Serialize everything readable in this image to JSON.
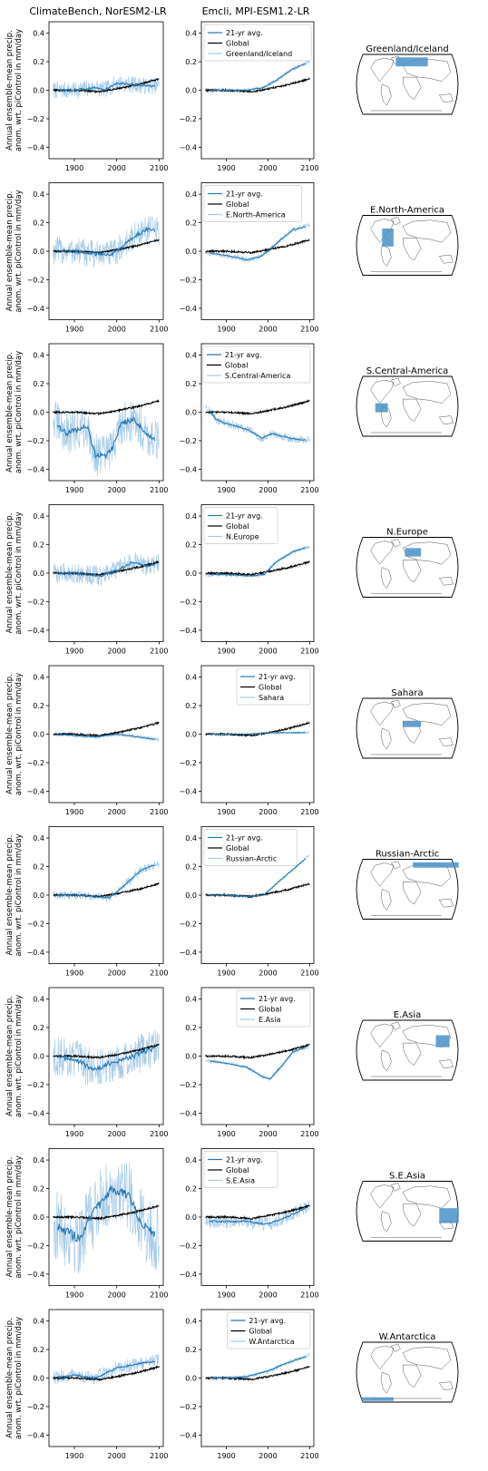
{
  "figure": {
    "col_titles": [
      "ClimateBench, NorESM2-LR",
      "Emcli, MPI-ESM1.2-LR"
    ],
    "ylabel_lines": [
      "Annual ensemble-mean precip.",
      "anom. wrt. piControl in mm/day"
    ],
    "legend_labels": [
      "21-yr avg.",
      "Global"
    ],
    "xticks": [
      1900,
      2000,
      2100
    ],
    "yticks": [
      -0.4,
      -0.2,
      0.0,
      0.2,
      0.4
    ],
    "ytick_labels": [
      "−0.4",
      "−0.2",
      "0.0",
      "0.2",
      "0.4"
    ],
    "xlim": [
      1840,
      2110
    ],
    "ylim": [
      -0.48,
      0.48
    ],
    "colors": {
      "avg": "#1f77b4",
      "raw": "#a6cbe8",
      "global": "#000000",
      "region": "#4a90c8"
    }
  },
  "chart_data": {
    "type": "line",
    "x_range": [
      1850,
      2100
    ],
    "regions": [
      {
        "name": "Greenland/Iceland",
        "legend_loc": "upper-left",
        "climatebench": {
          "avg": [
            [
              1850,
              0.0
            ],
            [
              1900,
              0.0
            ],
            [
              1950,
              0.02
            ],
            [
              1970,
              0.0
            ],
            [
              2000,
              0.05
            ],
            [
              2040,
              0.04
            ],
            [
              2070,
              0.03
            ],
            [
              2100,
              0.03
            ]
          ],
          "noise": 0.06
        },
        "emcli": {
          "avg": [
            [
              1850,
              0.0
            ],
            [
              1950,
              0.0
            ],
            [
              1990,
              0.02
            ],
            [
              2020,
              0.07
            ],
            [
              2060,
              0.15
            ],
            [
              2100,
              0.2
            ]
          ],
          "noise": 0.015
        },
        "global": [
          [
            1850,
            0.0
          ],
          [
            1900,
            0.0
          ],
          [
            1960,
            -0.01
          ],
          [
            2000,
            0.01
          ],
          [
            2050,
            0.04
          ],
          [
            2100,
            0.08
          ]
        ],
        "map_box": [
          0.4,
          0.05,
          0.68,
          0.2
        ]
      },
      {
        "name": "E.North-America",
        "legend_loc": "upper-left",
        "climatebench": {
          "avg": [
            [
              1850,
              0.0
            ],
            [
              1900,
              0.0
            ],
            [
              1950,
              -0.02
            ],
            [
              1990,
              -0.02
            ],
            [
              2020,
              0.05
            ],
            [
              2050,
              0.12
            ],
            [
              2075,
              0.16
            ],
            [
              2100,
              0.14
            ]
          ],
          "noise": 0.1
        },
        "emcli": {
          "avg": [
            [
              1850,
              -0.01
            ],
            [
              1900,
              -0.03
            ],
            [
              1950,
              -0.06
            ],
            [
              1980,
              -0.04
            ],
            [
              2000,
              0.0
            ],
            [
              2030,
              0.08
            ],
            [
              2060,
              0.15
            ],
            [
              2100,
              0.18
            ]
          ],
          "noise": 0.02
        },
        "global": [
          [
            1850,
            0.0
          ],
          [
            1900,
            0.0
          ],
          [
            1960,
            -0.01
          ],
          [
            2000,
            0.01
          ],
          [
            2050,
            0.04
          ],
          [
            2100,
            0.08
          ]
        ],
        "map_box": [
          0.28,
          0.22,
          0.38,
          0.52
        ]
      },
      {
        "name": "S.Central-America",
        "legend_loc": "upper-right",
        "climatebench": {
          "avg": [
            [
              1850,
              -0.05
            ],
            [
              1880,
              -0.15
            ],
            [
              1910,
              -0.12
            ],
            [
              1930,
              -0.1
            ],
            [
              1950,
              -0.3
            ],
            [
              1975,
              -0.3
            ],
            [
              1990,
              -0.25
            ],
            [
              2010,
              -0.08
            ],
            [
              2040,
              -0.05
            ],
            [
              2070,
              -0.15
            ],
            [
              2100,
              -0.22
            ]
          ],
          "noise": 0.15
        },
        "emcli": {
          "avg": [
            [
              1850,
              0.05
            ],
            [
              1875,
              -0.05
            ],
            [
              1900,
              -0.08
            ],
            [
              1950,
              -0.12
            ],
            [
              1985,
              -0.18
            ],
            [
              2010,
              -0.15
            ],
            [
              2050,
              -0.18
            ],
            [
              2100,
              -0.2
            ]
          ],
          "noise": 0.03
        },
        "global": [
          [
            1850,
            0.0
          ],
          [
            1900,
            0.0
          ],
          [
            1960,
            -0.01
          ],
          [
            2000,
            0.01
          ],
          [
            2050,
            0.04
          ],
          [
            2100,
            0.08
          ]
        ],
        "map_box": [
          0.22,
          0.45,
          0.33,
          0.6
        ]
      },
      {
        "name": "N.Europe",
        "legend_loc": "upper-left",
        "climatebench": {
          "avg": [
            [
              1850,
              0.0
            ],
            [
              1900,
              0.0
            ],
            [
              1960,
              -0.02
            ],
            [
              2000,
              0.02
            ],
            [
              2040,
              0.08
            ],
            [
              2070,
              0.05
            ],
            [
              2100,
              0.07
            ]
          ],
          "noise": 0.07
        },
        "emcli": {
          "avg": [
            [
              1850,
              -0.01
            ],
            [
              1900,
              -0.01
            ],
            [
              1960,
              -0.02
            ],
            [
              1990,
              -0.01
            ],
            [
              2020,
              0.08
            ],
            [
              2060,
              0.15
            ],
            [
              2100,
              0.19
            ]
          ],
          "noise": 0.015
        },
        "global": [
          [
            1850,
            0.0
          ],
          [
            1900,
            0.0
          ],
          [
            1960,
            -0.01
          ],
          [
            2000,
            0.01
          ],
          [
            2050,
            0.04
          ],
          [
            2100,
            0.08
          ]
        ],
        "map_box": [
          0.48,
          0.18,
          0.62,
          0.32
        ]
      },
      {
        "name": "Sahara",
        "legend_loc": "upper-right",
        "climatebench": {
          "avg": [
            [
              1850,
              0.0
            ],
            [
              1900,
              -0.01
            ],
            [
              1950,
              -0.02
            ],
            [
              2000,
              0.0
            ],
            [
              2050,
              -0.02
            ],
            [
              2100,
              -0.04
            ]
          ],
          "noise": 0.015
        },
        "emcli": {
          "avg": [
            [
              1850,
              0.0
            ],
            [
              1900,
              0.0
            ],
            [
              1950,
              0.0
            ],
            [
              2000,
              0.01
            ],
            [
              2050,
              0.01
            ],
            [
              2100,
              0.01
            ]
          ],
          "noise": 0.008
        },
        "global": [
          [
            1850,
            0.0
          ],
          [
            1900,
            0.0
          ],
          [
            1960,
            -0.01
          ],
          [
            2000,
            0.01
          ],
          [
            2050,
            0.04
          ],
          [
            2100,
            0.08
          ]
        ],
        "map_box": [
          0.46,
          0.38,
          0.62,
          0.48
        ]
      },
      {
        "name": "Russian-Arctic",
        "legend_loc": "upper-left",
        "climatebench": {
          "avg": [
            [
              1850,
              0.0
            ],
            [
              1900,
              0.0
            ],
            [
              1950,
              -0.01
            ],
            [
              1980,
              -0.02
            ],
            [
              2000,
              0.02
            ],
            [
              2030,
              0.1
            ],
            [
              2060,
              0.18
            ],
            [
              2100,
              0.22
            ]
          ],
          "noise": 0.03
        },
        "emcli": {
          "avg": [
            [
              1850,
              0.0
            ],
            [
              1900,
              0.0
            ],
            [
              1950,
              -0.01
            ],
            [
              1990,
              0.0
            ],
            [
              2020,
              0.08
            ],
            [
              2060,
              0.18
            ],
            [
              2100,
              0.28
            ]
          ],
          "noise": 0.01
        },
        "global": [
          [
            1850,
            0.0
          ],
          [
            1900,
            0.0
          ],
          [
            1960,
            -0.01
          ],
          [
            2000,
            0.01
          ],
          [
            2050,
            0.04
          ],
          [
            2100,
            0.08
          ]
        ],
        "map_box": [
          0.55,
          0.05,
          0.95,
          0.14
        ]
      },
      {
        "name": "E.Asia",
        "legend_loc": "upper-right",
        "climatebench": {
          "avg": [
            [
              1850,
              0.0
            ],
            [
              1900,
              -0.02
            ],
            [
              1950,
              -0.1
            ],
            [
              1980,
              -0.05
            ],
            [
              2000,
              -0.04
            ],
            [
              2040,
              0.0
            ],
            [
              2070,
              0.04
            ],
            [
              2100,
              0.06
            ]
          ],
          "noise": 0.14
        },
        "emcli": {
          "avg": [
            [
              1850,
              -0.03
            ],
            [
              1900,
              -0.05
            ],
            [
              1950,
              -0.08
            ],
            [
              1990,
              -0.15
            ],
            [
              2005,
              -0.16
            ],
            [
              2030,
              -0.08
            ],
            [
              2060,
              0.03
            ],
            [
              2100,
              0.07
            ]
          ],
          "noise": 0.015
        },
        "global": [
          [
            1850,
            0.0
          ],
          [
            1900,
            0.0
          ],
          [
            1960,
            -0.01
          ],
          [
            2000,
            0.01
          ],
          [
            2050,
            0.04
          ],
          [
            2100,
            0.08
          ]
        ],
        "map_box": [
          0.75,
          0.25,
          0.87,
          0.45
        ]
      },
      {
        "name": "S.E.Asia",
        "legend_loc": "upper-left",
        "climatebench": {
          "avg": [
            [
              1850,
              -0.05
            ],
            [
              1880,
              -0.1
            ],
            [
              1910,
              -0.15
            ],
            [
              1950,
              0.05
            ],
            [
              1990,
              0.2
            ],
            [
              2030,
              0.15
            ],
            [
              2060,
              -0.05
            ],
            [
              2100,
              -0.15
            ]
          ],
          "noise": 0.25
        },
        "emcli": {
          "avg": [
            [
              1850,
              -0.03
            ],
            [
              1900,
              -0.03
            ],
            [
              1950,
              -0.03
            ],
            [
              1990,
              -0.05
            ],
            [
              2020,
              -0.03
            ],
            [
              2060,
              0.02
            ],
            [
              2100,
              0.08
            ]
          ],
          "noise": 0.05
        },
        "global": [
          [
            1850,
            0.0
          ],
          [
            1900,
            0.0
          ],
          [
            1960,
            -0.01
          ],
          [
            2000,
            0.01
          ],
          [
            2050,
            0.04
          ],
          [
            2100,
            0.08
          ]
        ],
        "map_box": [
          0.78,
          0.45,
          0.95,
          0.7
        ]
      },
      {
        "name": "W.Antarctica",
        "legend_loc": "upper-right",
        "climatebench": {
          "avg": [
            [
              1850,
              0.0
            ],
            [
              1900,
              0.02
            ],
            [
              1950,
              0.0
            ],
            [
              2000,
              0.07
            ],
            [
              2050,
              0.1
            ],
            [
              2100,
              0.12
            ]
          ],
          "noise": 0.05
        },
        "emcli": {
          "avg": [
            [
              1850,
              0.0
            ],
            [
              1900,
              0.0
            ],
            [
              1950,
              0.01
            ],
            [
              2000,
              0.05
            ],
            [
              2050,
              0.11
            ],
            [
              2100,
              0.16
            ]
          ],
          "noise": 0.015
        },
        "global": [
          [
            1850,
            0.0
          ],
          [
            1900,
            0.0
          ],
          [
            1960,
            -0.01
          ],
          [
            2000,
            0.01
          ],
          [
            2050,
            0.04
          ],
          [
            2100,
            0.08
          ]
        ],
        "map_box": [
          0.1,
          0.92,
          0.38,
          0.98
        ]
      }
    ]
  }
}
